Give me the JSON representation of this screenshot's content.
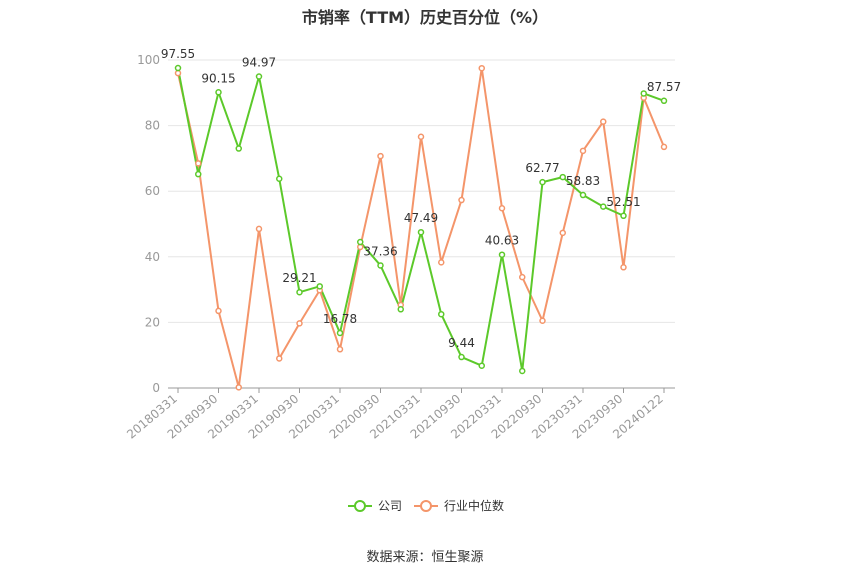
{
  "chart_data": {
    "type": "line",
    "title": "市销率（TTM）历史百分位（%）",
    "source": "数据来源：恒生聚源",
    "ylim": [
      0,
      100
    ],
    "yticks": [
      0,
      20,
      40,
      60,
      80,
      100
    ],
    "grid": true,
    "legend_position": "bottom",
    "x_tick_labels": [
      "20180331",
      "20180930",
      "20190331",
      "20190930",
      "20200331",
      "20200930",
      "20210331",
      "20210930",
      "20220331",
      "20220930",
      "20230331",
      "20230930",
      "20240122"
    ],
    "x": [
      "20180331",
      "20180630",
      "20180930",
      "20181231",
      "20190331",
      "20190630",
      "20190930",
      "20191231",
      "20200331",
      "20200630",
      "20200930",
      "20201231",
      "20210331",
      "20210630",
      "20210930",
      "20211231",
      "20220331",
      "20220630",
      "20220930",
      "20221231",
      "20230331",
      "20230630",
      "20230930",
      "20231231",
      "20240122"
    ],
    "series": [
      {
        "name": "公司",
        "color": "#5cc92a",
        "values": [
          97.55,
          65.2,
          90.15,
          73.0,
          94.97,
          63.8,
          29.21,
          31.0,
          16.78,
          44.5,
          37.36,
          24.0,
          47.49,
          22.5,
          9.44,
          6.8,
          40.63,
          5.2,
          62.77,
          64.3,
          58.83,
          55.3,
          52.51,
          89.8,
          87.57
        ],
        "labels": {
          "0": "97.55",
          "2": "90.15",
          "4": "94.97",
          "6": "29.21",
          "8": "16.78",
          "10": "37.36",
          "12": "47.49",
          "14": "9.44",
          "16": "40.63",
          "18": "62.77",
          "20": "58.83",
          "22": "52.51",
          "24": "87.57"
        }
      },
      {
        "name": "行业中位数",
        "color": "#f4956a",
        "values": [
          96.0,
          68.5,
          23.5,
          0.2,
          48.5,
          9.0,
          19.7,
          29.8,
          11.8,
          43.0,
          70.7,
          25.3,
          76.6,
          38.3,
          57.3,
          97.5,
          54.8,
          33.8,
          20.5,
          47.3,
          72.3,
          81.2,
          36.8,
          88.5,
          73.5
        ]
      }
    ]
  }
}
